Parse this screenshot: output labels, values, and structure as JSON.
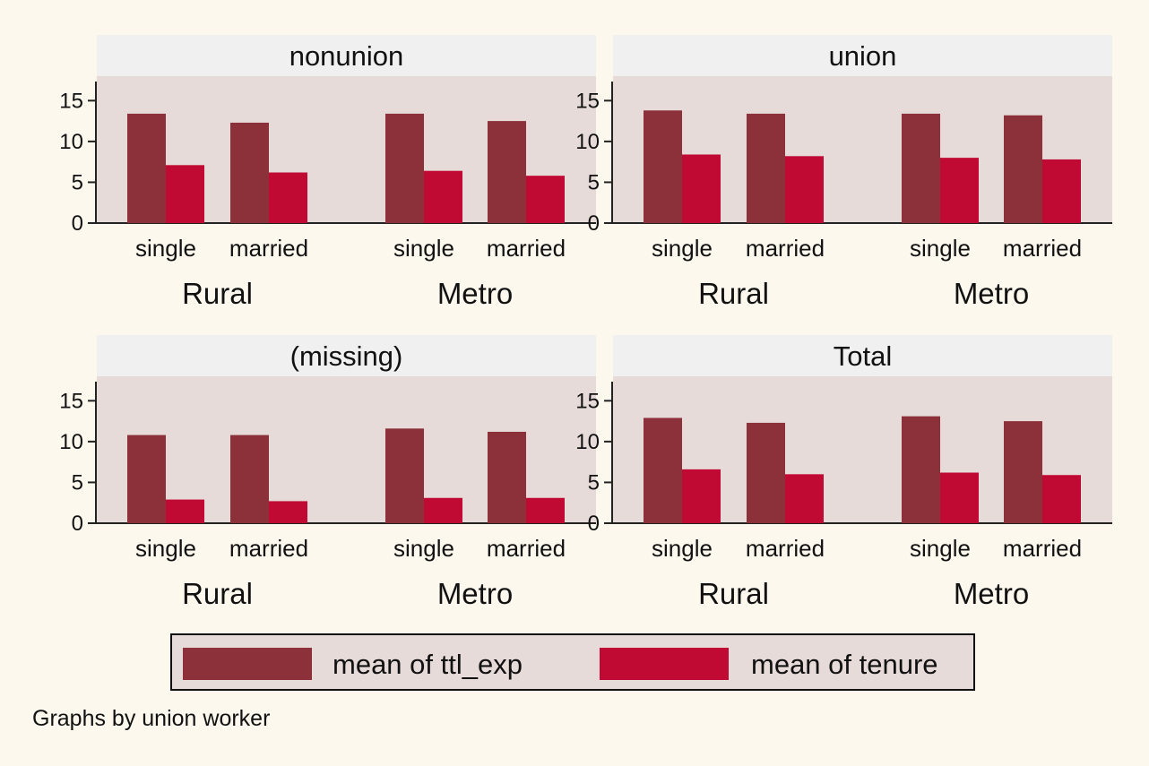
{
  "chart_data": {
    "type": "bar",
    "panel_by": "Graphs by union worker",
    "y_ticks": [
      0,
      5,
      10,
      15
    ],
    "ylim": [
      0,
      18
    ],
    "series": [
      {
        "name": "mean of ttl_exp",
        "color": "#8c3039"
      },
      {
        "name": "mean of tenure",
        "color": "#c00a34"
      }
    ],
    "groups": [
      "Rural",
      "Metro"
    ],
    "categories": [
      "single",
      "married"
    ],
    "panels": [
      {
        "title": "nonunion",
        "values": {
          "mean of ttl_exp": [
            13.4,
            12.3,
            13.4,
            12.5
          ],
          "mean of tenure": [
            7.1,
            6.2,
            6.4,
            5.8
          ]
        }
      },
      {
        "title": "union",
        "values": {
          "mean of ttl_exp": [
            13.8,
            13.4,
            13.4,
            13.2
          ],
          "mean of tenure": [
            8.4,
            8.2,
            8.0,
            7.8
          ]
        }
      },
      {
        "title": "(missing)",
        "values": {
          "mean of ttl_exp": [
            10.8,
            10.8,
            11.6,
            11.2
          ],
          "mean of tenure": [
            2.9,
            2.7,
            3.1,
            3.1
          ]
        }
      },
      {
        "title": "Total",
        "values": {
          "mean of ttl_exp": [
            12.9,
            12.3,
            13.1,
            12.5
          ],
          "mean of tenure": [
            6.6,
            6.0,
            6.2,
            5.9
          ]
        }
      }
    ],
    "legend_position": "bottom",
    "grid": false
  }
}
